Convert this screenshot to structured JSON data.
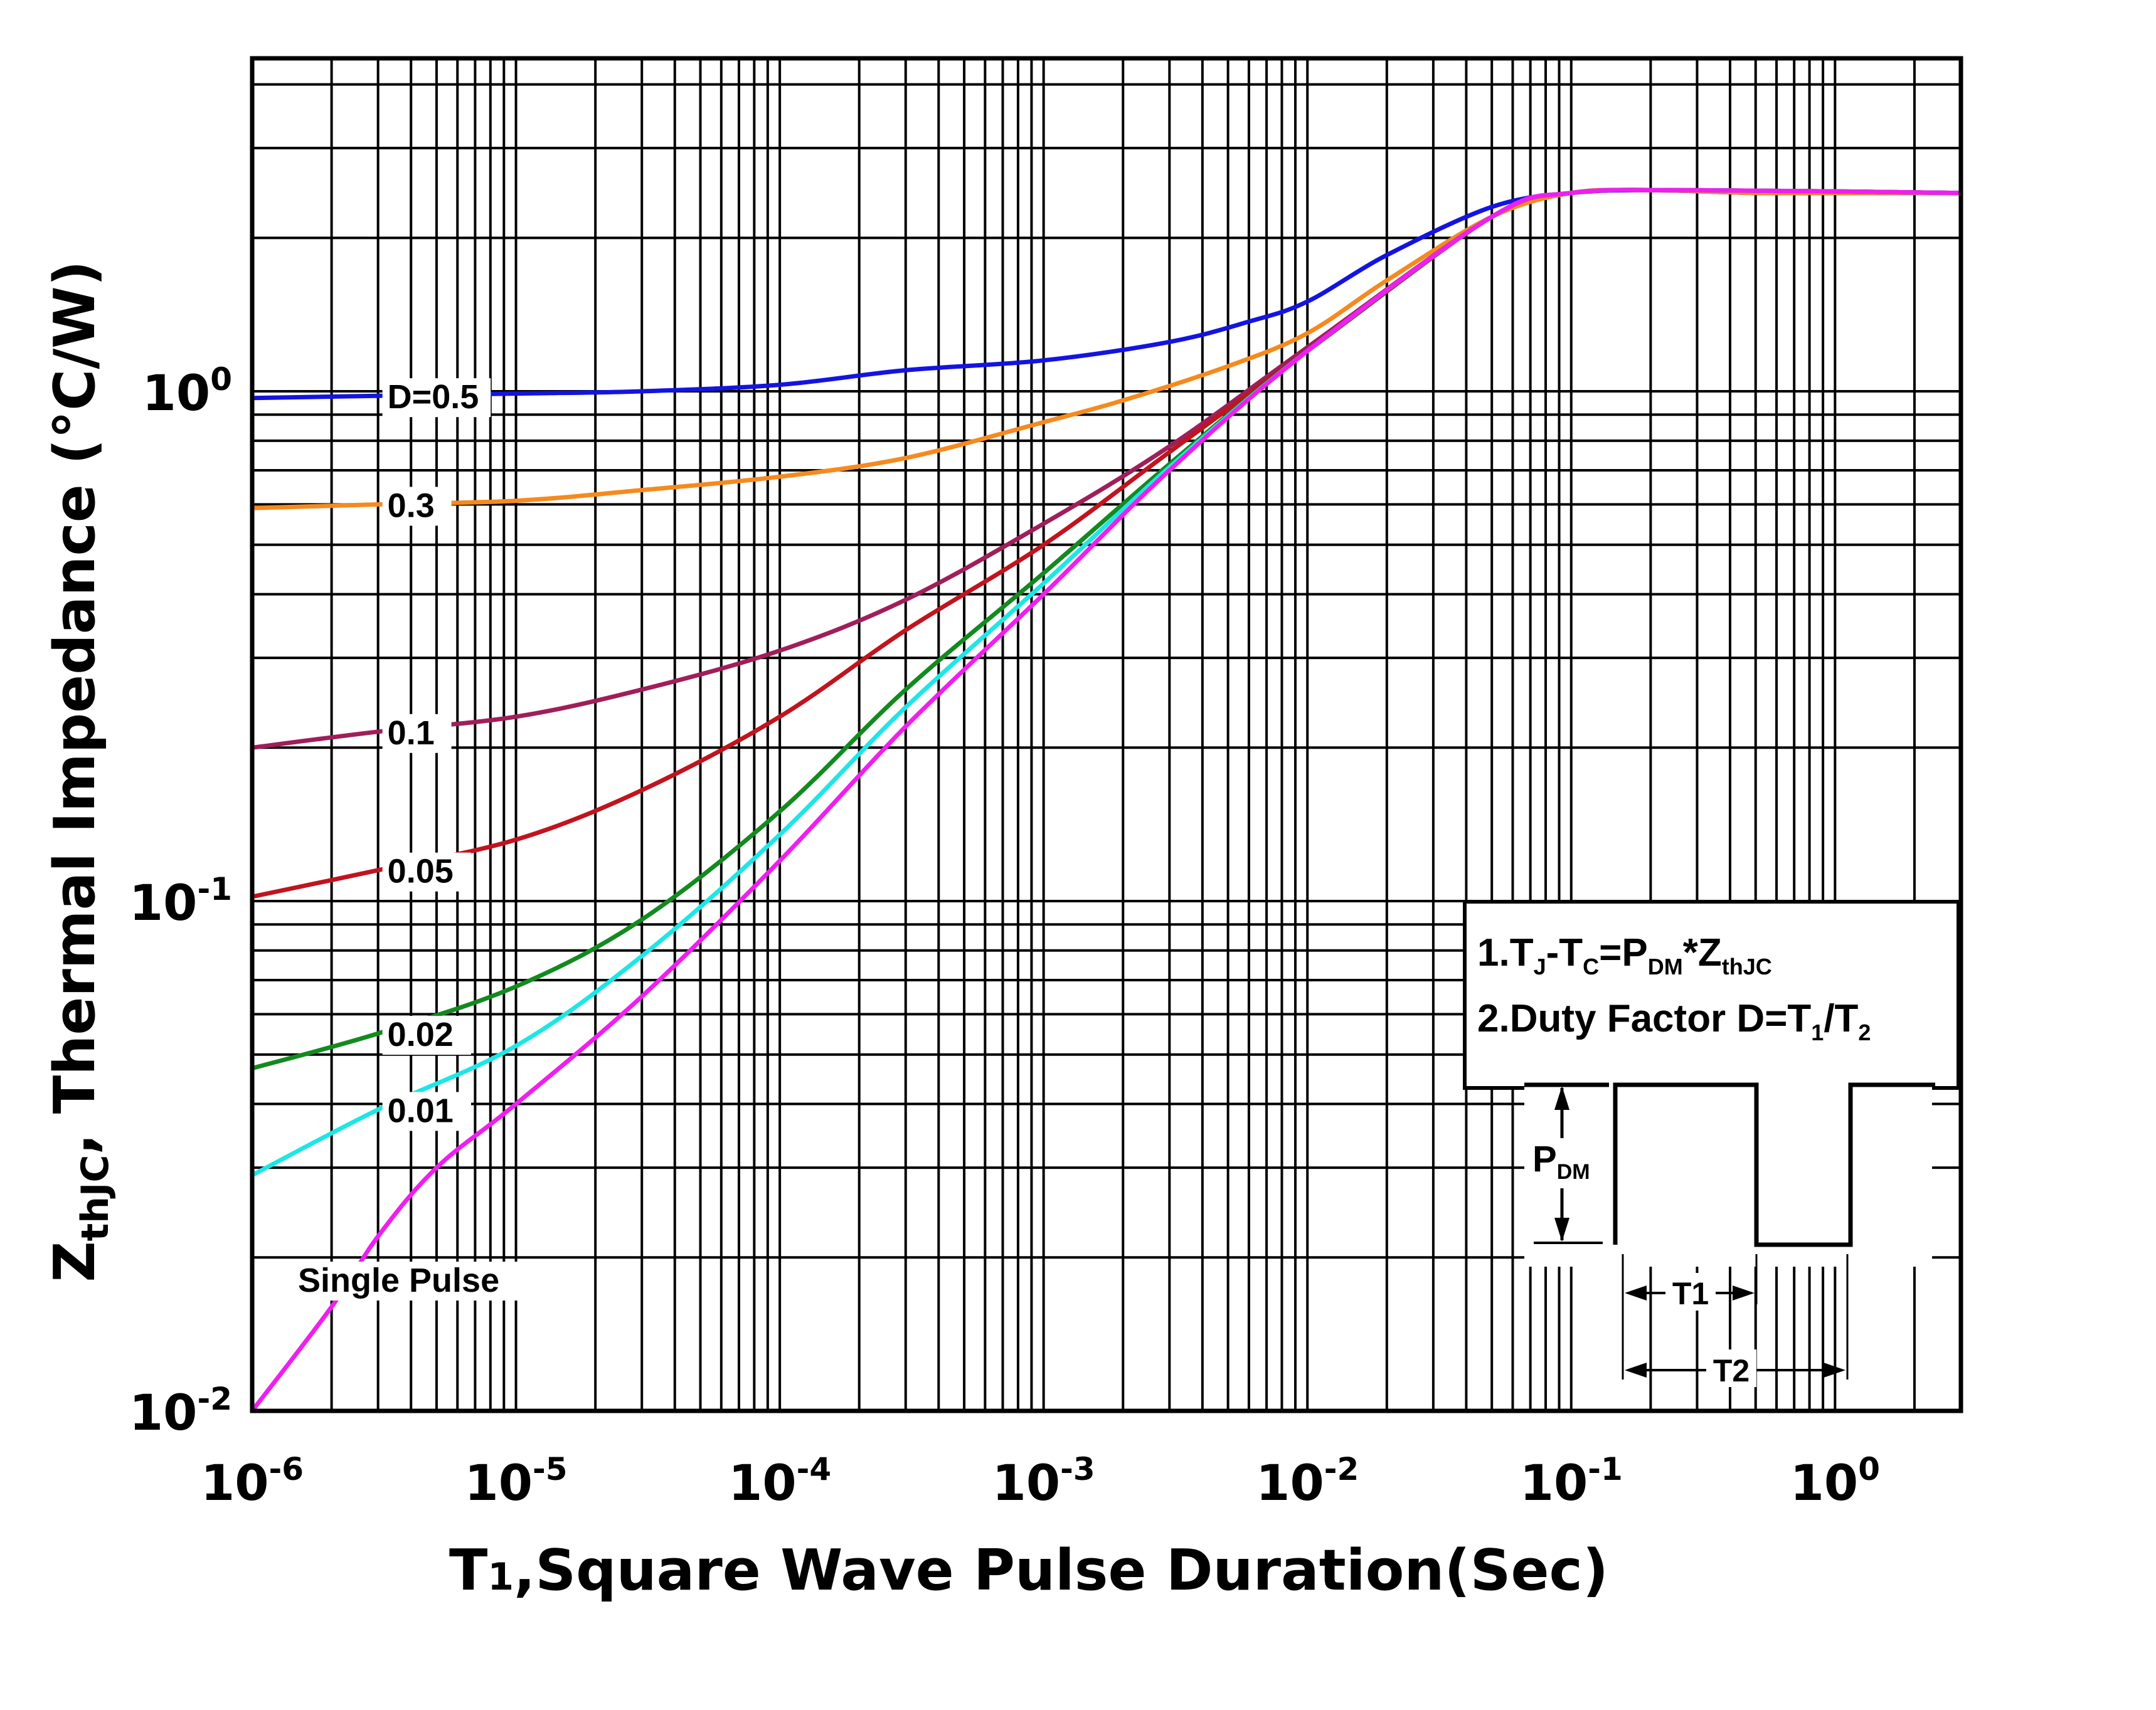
{
  "chart_data": {
    "type": "line",
    "title": "",
    "xlabel": "T1,Square Wave Pulse Duration(Sec)",
    "ylabel": "ZthJC, Thermal Impedance (°C/W)",
    "xscale": "log",
    "yscale": "log",
    "xlim": [
      1e-06,
      3
    ],
    "ylim": [
      0.01,
      4.5
    ],
    "x_ticks": [
      {
        "value": 1e-06,
        "base": "10",
        "exp": "-6"
      },
      {
        "value": 1e-05,
        "base": "10",
        "exp": "-5"
      },
      {
        "value": 0.0001,
        "base": "10",
        "exp": "-4"
      },
      {
        "value": 0.001,
        "base": "10",
        "exp": "-3"
      },
      {
        "value": 0.01,
        "base": "10",
        "exp": "-2"
      },
      {
        "value": 0.1,
        "base": "10",
        "exp": "-1"
      },
      {
        "value": 1,
        "base": "10",
        "exp": "0"
      }
    ],
    "y_ticks": [
      {
        "value": 0.01,
        "base": "10",
        "exp": "-2"
      },
      {
        "value": 0.1,
        "base": "10",
        "exp": "-1"
      },
      {
        "value": 1,
        "base": "10",
        "exp": "0"
      }
    ],
    "y_label_parts": {
      "main": "Z",
      "sub": "thJC",
      "rest": ", Thermal  Impedance (°C/W)"
    },
    "x_label_parts": {
      "main": "T",
      "sub": "1",
      "rest": ",Square Wave Pulse Duration(Sec)"
    },
    "grid": true,
    "series": [
      {
        "name": "D=0.5",
        "label": "D=0.5",
        "color": "#1414e0",
        "label_x": 3e-06,
        "x": [
          1e-06,
          3e-06,
          1e-05,
          3e-05,
          0.0001,
          0.0003,
          0.001,
          0.003,
          0.006,
          0.01,
          0.02,
          0.05,
          0.1,
          0.2,
          0.5,
          1,
          3
        ],
        "y": [
          0.97,
          0.98,
          0.99,
          1.0,
          1.03,
          1.1,
          1.15,
          1.25,
          1.37,
          1.5,
          1.85,
          2.3,
          2.45,
          2.48,
          2.45,
          2.45,
          2.45
        ]
      },
      {
        "name": "0.3",
        "label": "0.3",
        "color": "#f58a1f",
        "label_x": 3e-06,
        "x": [
          1e-06,
          3e-06,
          1e-05,
          3e-05,
          0.0001,
          0.0003,
          0.001,
          0.002,
          0.005,
          0.01,
          0.02,
          0.05,
          0.1,
          0.2,
          0.5,
          1,
          3
        ],
        "y": [
          0.59,
          0.6,
          0.61,
          0.64,
          0.68,
          0.74,
          0.87,
          0.96,
          1.12,
          1.3,
          1.65,
          2.2,
          2.45,
          2.48,
          2.45,
          2.45,
          2.45
        ]
      },
      {
        "name": "0.1",
        "label": "0.1",
        "color": "#a01e5a",
        "label_x": 3e-06,
        "x": [
          1e-06,
          3e-06,
          1e-05,
          3e-05,
          0.0001,
          0.0003,
          0.001,
          0.003,
          0.01,
          0.05,
          0.1,
          0.3,
          3
        ],
        "y": [
          0.2,
          0.215,
          0.23,
          0.26,
          0.31,
          0.39,
          0.55,
          0.78,
          1.22,
          2.2,
          2.45,
          2.48,
          2.45
        ]
      },
      {
        "name": "0.05",
        "label": "0.05",
        "color": "#c0141e",
        "label_x": 3e-06,
        "x": [
          1e-06,
          3e-06,
          1e-05,
          3e-05,
          0.0001,
          0.0003,
          0.001,
          0.003,
          0.01,
          0.05,
          0.1,
          0.3,
          3
        ],
        "y": [
          0.102,
          0.115,
          0.132,
          0.165,
          0.23,
          0.34,
          0.5,
          0.76,
          1.2,
          2.2,
          2.45,
          2.48,
          2.45
        ]
      },
      {
        "name": "0.02",
        "label": "0.02",
        "color": "#138a1f",
        "label_x": 3e-06,
        "x": [
          1e-06,
          3e-06,
          1e-05,
          3e-05,
          0.0001,
          0.0003,
          0.001,
          0.003,
          0.01,
          0.05,
          0.1,
          0.3,
          3
        ],
        "y": [
          0.047,
          0.055,
          0.068,
          0.092,
          0.15,
          0.26,
          0.44,
          0.72,
          1.2,
          2.2,
          2.45,
          2.48,
          2.45
        ]
      },
      {
        "name": "0.01",
        "label": "0.01",
        "color": "#1ee6e6",
        "label_x": 3e-06,
        "x": [
          1e-06,
          3e-06,
          1e-05,
          3e-05,
          0.0001,
          0.0003,
          0.001,
          0.003,
          0.01,
          0.05,
          0.1,
          0.3,
          3
        ],
        "y": [
          0.029,
          0.039,
          0.052,
          0.078,
          0.135,
          0.24,
          0.42,
          0.71,
          1.2,
          2.2,
          2.45,
          2.48,
          2.45
        ]
      },
      {
        "name": "Single Pulse",
        "label": "Single Pulse",
        "color": "#f01ef0",
        "label_x": 3e-06,
        "x": [
          1e-06,
          2e-06,
          3e-06,
          5e-06,
          1e-05,
          3e-05,
          0.0001,
          0.0003,
          0.001,
          0.003,
          0.01,
          0.05,
          0.1,
          0.3,
          3
        ],
        "y": [
          0.01,
          0.016,
          0.022,
          0.03,
          0.04,
          0.065,
          0.12,
          0.22,
          0.4,
          0.7,
          1.2,
          2.2,
          2.45,
          2.48,
          2.45
        ]
      }
    ],
    "annotations": {
      "note1": {
        "a": "1.T",
        "b": "J",
        "c": "-T",
        "d": "C",
        "e": "=P",
        "f": "DM",
        "g": "*Z",
        "h": "thJC"
      },
      "note2": {
        "a": "2.Duty Factor D=T",
        "b": "1",
        "c": "/T",
        "d": "2"
      },
      "pulse_label": {
        "main": "P",
        "sub": "DM"
      },
      "t1_label": "T1",
      "t2_label": "T2"
    }
  }
}
